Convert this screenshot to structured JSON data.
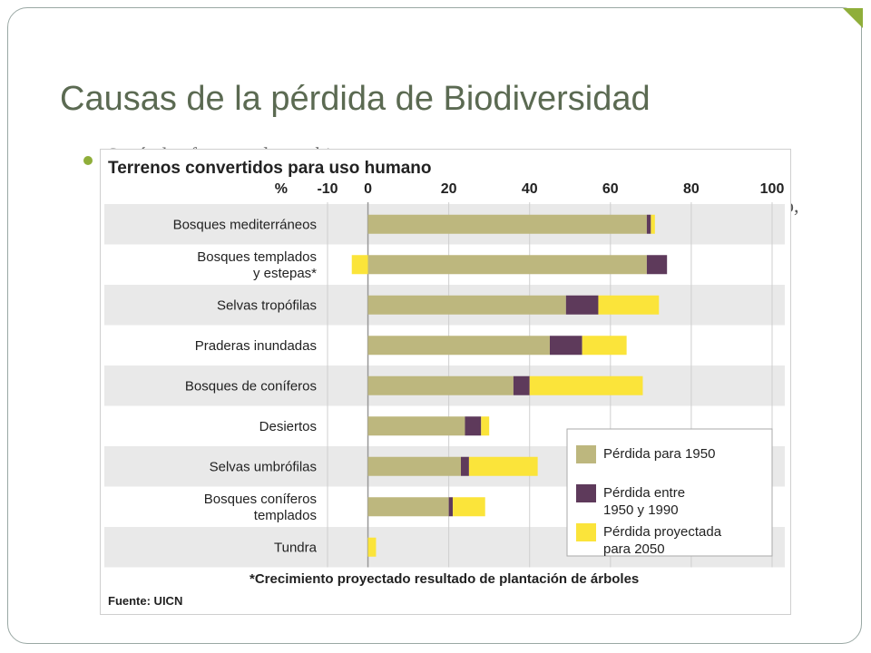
{
  "slide": {
    "title": "Causas de la pérdida de Biodiversidad",
    "bullet_text": "Según los factores de cambio",
    "bg_text_1": "o,",
    "bg_text_2": ","
  },
  "colors": {
    "accent": "#8fae3a",
    "title": "#5b6a52",
    "loss_1950": "#bdb77e",
    "loss_1950_1990": "#5e3a5b",
    "loss_2050": "#fbe43a",
    "band": "#e9e9e9"
  },
  "chart_data": {
    "type": "bar",
    "orientation": "horizontal",
    "stacked": true,
    "title": "Terrenos convertidos para uso humano",
    "axis_unit_label": "%",
    "xlim": [
      -10,
      100
    ],
    "xticks": [
      -10,
      0,
      20,
      40,
      60,
      80,
      100
    ],
    "grid": true,
    "legend_position": "bottom-right",
    "categories": [
      "Bosques mediterráneos",
      "Bosques templados\ny estepas*",
      "Selvas tropófilas",
      "Praderas inundadas",
      "Bosques de coníferos",
      "Desiertos",
      "Selvas umbrófilas",
      "Bosques coníferos\ntemplados",
      "Tundra"
    ],
    "series": [
      {
        "name": "Pérdida para 1950",
        "values": [
          69,
          69,
          49,
          45,
          36,
          24,
          23,
          20,
          0
        ]
      },
      {
        "name": "Pérdida entre\n1950 y 1990",
        "values": [
          1,
          5,
          8,
          8,
          4,
          4,
          2,
          1,
          0
        ]
      },
      {
        "name": "Pérdida proyectada\npara 2050",
        "values": [
          1,
          -4,
          15,
          11,
          28,
          2,
          17,
          8,
          2
        ]
      }
    ],
    "footnote": "*Crecimiento proyectado resultado de plantación de árboles",
    "source": "Fuente: UICN"
  }
}
